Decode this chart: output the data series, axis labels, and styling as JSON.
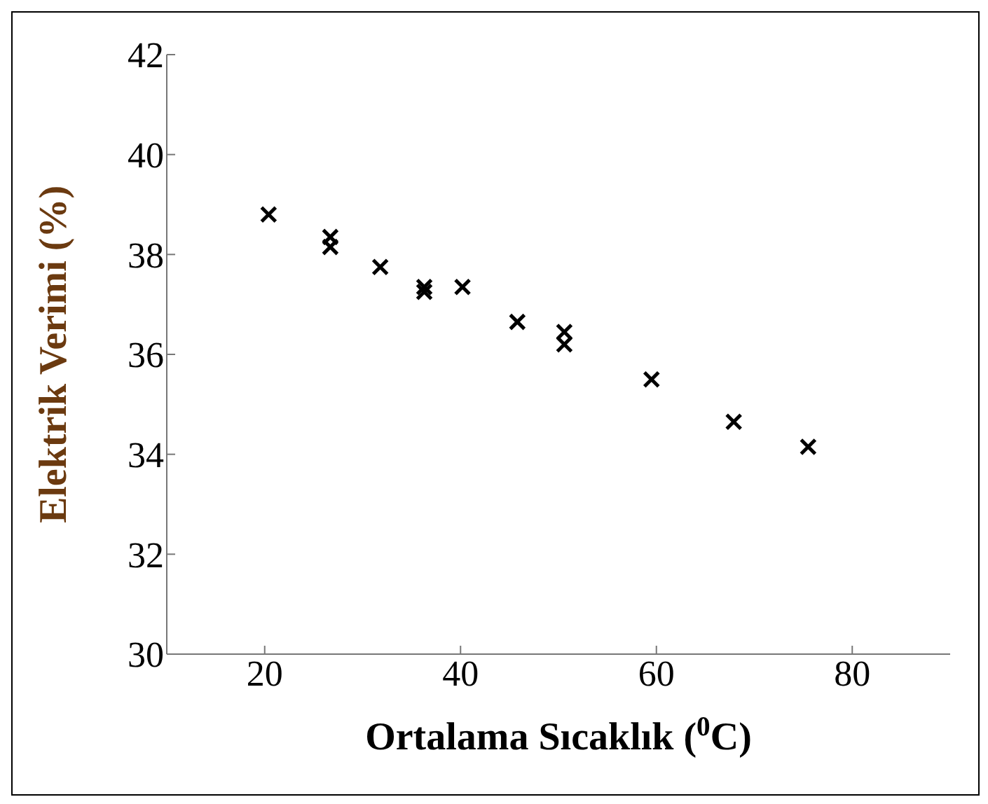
{
  "chart_data": {
    "type": "scatter",
    "xlabel": "Ortalama Sıcaklık ($^{0}$C)",
    "ylabel": "Elektrik Verimi (%)",
    "x": [
      20.4,
      26.7,
      26.7,
      31.8,
      36.3,
      36.3,
      40.2,
      45.8,
      50.6,
      50.6,
      59.5,
      67.9,
      75.5
    ],
    "values": [
      38.8,
      38.35,
      38.15,
      37.75,
      37.35,
      37.25,
      37.35,
      36.65,
      36.45,
      36.2,
      35.5,
      34.65,
      34.15
    ],
    "color": "#000000",
    "marker": "cross",
    "xlim": [
      10,
      90
    ],
    "xticks": [
      20,
      40,
      60,
      80
    ],
    "ylim": [
      30,
      42
    ],
    "yticks": [
      30,
      32,
      34,
      36,
      38,
      40,
      42
    ]
  }
}
